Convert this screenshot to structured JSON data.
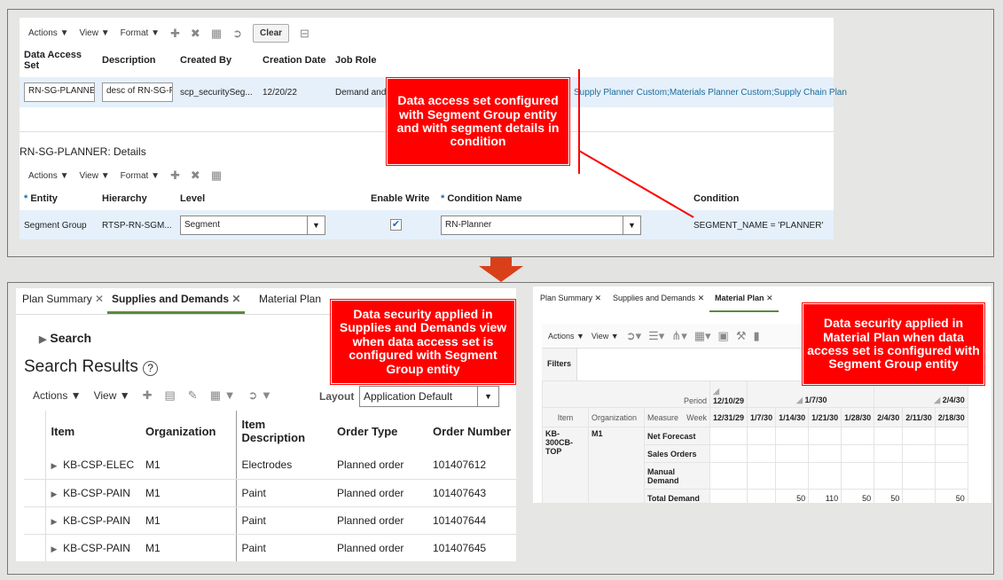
{
  "top": {
    "toolbar": {
      "actions": "Actions ▼",
      "view": "View ▼",
      "format": "Format ▼",
      "clear": "Clear"
    },
    "headers": [
      "Data Access Set",
      "Description",
      "Created By",
      "Creation Date",
      "Job Role"
    ],
    "row": {
      "das": "RN-SG-PLANNER",
      "desc": "desc of RN-SG-PLANNER",
      "created_by": "scp_securitySeg...",
      "date": "12/20/22",
      "job_role": "Demand and",
      "job_role_tail": "Supply Planner Custom;Materials Planner Custom;Supply Chain Plan"
    },
    "details_title": "RN-SG-PLANNER: Details",
    "details_headers": {
      "entity": "Entity",
      "hierarchy": "Hierarchy",
      "level": "Level",
      "enable_write": "Enable Write",
      "condition_name": "Condition Name",
      "condition": "Condition"
    },
    "details_row": {
      "entity": "Segment Group",
      "hierarchy": "RTSP-RN-SGM...",
      "level": "Segment",
      "enable_write": true,
      "condition_name": "RN-Planner",
      "condition": "SEGMENT_NAME = 'PLANNER'"
    },
    "callout": "Data access set configured with Segment Group entity and with segment details in condition"
  },
  "sd": {
    "tabs": [
      "Plan Summary",
      "Supplies and Demands",
      "Material Plan"
    ],
    "search": "Search",
    "results_title": "Search Results",
    "toolbar": {
      "actions": "Actions ▼",
      "view": "View ▼",
      "layout_label": "Layout",
      "layout_value": "Application Default"
    },
    "headers": [
      "Item",
      "Organization",
      "Item Description",
      "Order Type",
      "Order Number"
    ],
    "rows": [
      [
        "KB-CSP-ELEC",
        "M1",
        "Electrodes",
        "Planned order",
        "101407612"
      ],
      [
        "KB-CSP-PAIN",
        "M1",
        "Paint",
        "Planned order",
        "101407643"
      ],
      [
        "KB-CSP-PAIN",
        "M1",
        "Paint",
        "Planned order",
        "101407644"
      ],
      [
        "KB-CSP-PAIN",
        "M1",
        "Paint",
        "Planned order",
        "101407645"
      ]
    ],
    "callout": "Data security applied in Supplies and Demands view when data access set is configured with Segment Group entity"
  },
  "mp": {
    "tabs": [
      "Plan Summary",
      "Supplies and Demands",
      "Material Plan"
    ],
    "toolbar": {
      "actions": "Actions ▼",
      "view": "View ▼"
    },
    "filters": "Filters",
    "period_label": "Period",
    "week_label": "Week",
    "periods": [
      "12/10/29",
      "1/7/30",
      "2/4/30"
    ],
    "headers": [
      "Item",
      "Organization",
      "Measure"
    ],
    "weeks": [
      "12/31/29",
      "1/7/30",
      "1/14/30",
      "1/21/30",
      "1/28/30",
      "2/4/30",
      "2/11/30",
      "2/18/30"
    ],
    "item": "KB-300CB-TOP",
    "org": "M1",
    "measures": [
      {
        "name": "Net Forecast",
        "values": [
          "",
          "",
          "",
          "",
          "",
          "",
          "",
          ""
        ]
      },
      {
        "name": "Sales Orders",
        "values": [
          "",
          "",
          "",
          "",
          "",
          "",
          "",
          ""
        ]
      },
      {
        "name": "Manual Demand",
        "values": [
          "",
          "",
          "",
          "",
          "",
          "",
          "",
          ""
        ]
      },
      {
        "name": "Total Demand",
        "values": [
          "",
          "",
          "50",
          "110",
          "50",
          "50",
          "",
          "50"
        ]
      }
    ],
    "callout": "Data security applied in Material Plan when data access set is configured with Segment Group entity"
  },
  "colors": {
    "callout": "#ff0000",
    "arrow": "#d9401a",
    "selected_row": "#e5f0fb",
    "tab_underline": "#5a8a3a"
  }
}
